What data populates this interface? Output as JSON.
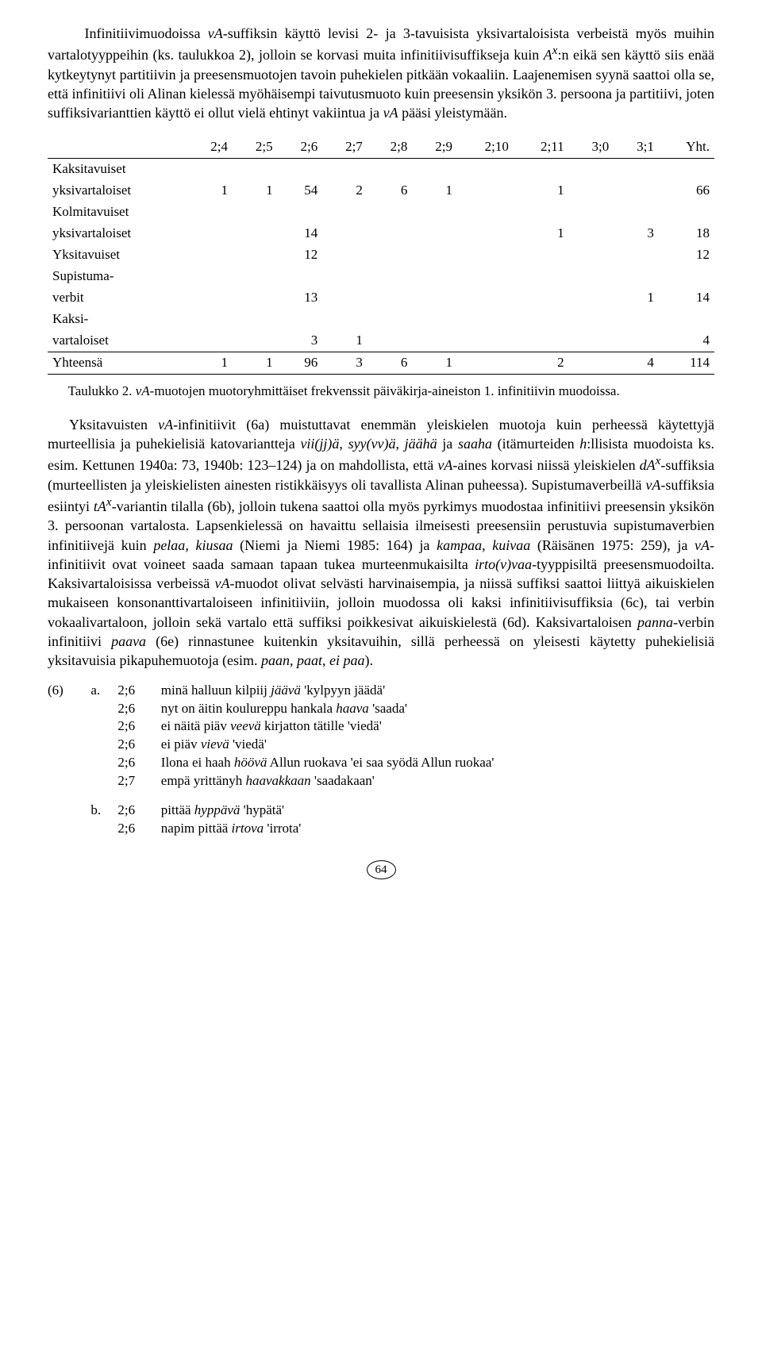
{
  "para1": {
    "a": "Infinitiivimuodoissa ",
    "b": "vA",
    "c": "-suffiksin käyttö levisi 2- ja 3-tavuisista yksivartaloisista verbeistä myös muihin vartalotyyppeihin (ks. taulukkoa 2), jolloin se korvasi muita infinitiivisuffikseja kuin ",
    "d": "A",
    "e": ":n eikä sen käyttö siis enää kytkeytynyt partitiivin ja preesensmuotojen tavoin puhekielen pitkään vokaaliin. Laajenemisen syynä saattoi olla se, että infinitiivi oli Alinan kielessä myöhäisempi taivutusmuoto kuin preesensin yksikön 3. persoona ja partitiivi, joten suffiksivarianttien käyttö ei ollut vielä ehtinyt vakiintua ja ",
    "f": "vA",
    "g": " pääsi yleistymään.",
    "sup": "x"
  },
  "table": {
    "headers": [
      "2;4",
      "2;5",
      "2;6",
      "2;7",
      "2;8",
      "2;9",
      "2;10",
      "2;11",
      "3;0",
      "3;1",
      "Yht."
    ],
    "rows": [
      {
        "label1": "Kaksitavuiset",
        "label2": "yksivartaloiset",
        "cells": [
          "1",
          "1",
          "54",
          "2",
          "6",
          "1",
          "",
          "1",
          "",
          "",
          "66"
        ]
      },
      {
        "label1": "Kolmitavuiset",
        "label2": "yksivartaloiset",
        "cells": [
          "",
          "",
          "14",
          "",
          "",
          "",
          "",
          "1",
          "",
          "3",
          "18"
        ]
      },
      {
        "label1": "Yksitavuiset",
        "label2": "",
        "cells": [
          "",
          "",
          "12",
          "",
          "",
          "",
          "",
          "",
          "",
          "",
          "12"
        ]
      },
      {
        "label1": "Supistuma-",
        "label2": "verbit",
        "cells": [
          "",
          "",
          "13",
          "",
          "",
          "",
          "",
          "",
          "",
          "1",
          "14"
        ]
      },
      {
        "label1": "Kaksi-",
        "label2": "vartaloiset",
        "cells": [
          "",
          "",
          "3",
          "1",
          "",
          "",
          "",
          "",
          "",
          "",
          "4"
        ]
      }
    ],
    "total": {
      "label": "Yhteensä",
      "cells": [
        "1",
        "1",
        "96",
        "3",
        "6",
        "1",
        "",
        "2",
        "",
        "4",
        "114"
      ]
    }
  },
  "caption": {
    "a": "Taulukko 2. ",
    "b": "vA",
    "c": "-muotojen muotoryhmittäiset frekvenssit päiväkirja-aineiston 1. infinitiivin muodoissa."
  },
  "para2_parts": [
    {
      "t": "Yksitavuisten "
    },
    {
      "t": "vA",
      "i": true
    },
    {
      "t": "-infinitiivit (6a) muistuttavat enemmän yleiskielen muotoja kuin perheessä käytettyjä murteellisia ja puhekielisiä katovariantteja "
    },
    {
      "t": "vii(jj)ä",
      "i": true
    },
    {
      "t": ", "
    },
    {
      "t": "syy(vv)ä",
      "i": true
    },
    {
      "t": ", "
    },
    {
      "t": "jäähä",
      "i": true
    },
    {
      "t": " ja "
    },
    {
      "t": "saaha",
      "i": true
    },
    {
      "t": " (itämurteiden "
    },
    {
      "t": "h",
      "i": true
    },
    {
      "t": ":llisista muodoista ks. esim. Kettunen 1940a: 73, 1940b: 123–124) ja on mahdollista, että "
    },
    {
      "t": "vA",
      "i": true
    },
    {
      "t": "-aines korvasi niissä yleiskielen "
    },
    {
      "t": "dA",
      "i": true
    },
    {
      "t": "",
      "sup": "x"
    },
    {
      "t": "-suffiksia (murteellisten ja yleiskielisten ainesten ristikkäisyys oli tavallista Alinan puheessa). Supistumaverbeillä "
    },
    {
      "t": "vA",
      "i": true
    },
    {
      "t": "-suffiksia esiintyi "
    },
    {
      "t": "tA",
      "i": true
    },
    {
      "t": "",
      "sup": "x"
    },
    {
      "t": "-variantin tilalla (6b), jolloin tukena saattoi olla myös pyrkimys muodostaa infinitiivi preesensin yksikön 3. persoonan vartalosta. Lapsenkielessä on havaittu sellaisia ilmeisesti preesensiin perustuvia supistumaverbien infinitiivejä kuin "
    },
    {
      "t": "pelaa",
      "i": true
    },
    {
      "t": ", "
    },
    {
      "t": "kiusaa",
      "i": true
    },
    {
      "t": " (Niemi ja Niemi 1985: 164) ja "
    },
    {
      "t": "kampaa",
      "i": true
    },
    {
      "t": ", "
    },
    {
      "t": "kuivaa",
      "i": true
    },
    {
      "t": " (Räisänen 1975: 259), ja "
    },
    {
      "t": "vA",
      "i": true
    },
    {
      "t": "-infinitiivit ovat voineet saada samaan tapaan tukea murteenmukaisilta "
    },
    {
      "t": "irto(v)vaa",
      "i": true
    },
    {
      "t": "-tyyppisiltä preesensmuodoilta. Kaksivartaloisissa verbeissä "
    },
    {
      "t": "vA",
      "i": true
    },
    {
      "t": "-muodot olivat selvästi harvinaisempia, ja niissä suffiksi saattoi liittyä aikuiskielen mukaiseen konsonanttivartaloiseen infinitiiviin, jolloin muodossa oli kaksi infinitiivisuffiksia (6c), tai verbin vokaalivartaloon, jolloin sekä vartalo että suffiksi poikkesivat aikuiskielestä (6d). Kaksivartaloisen "
    },
    {
      "t": "panna",
      "i": true
    },
    {
      "t": "-verbin infinitiivi "
    },
    {
      "t": "paava",
      "i": true
    },
    {
      "t": " (6e) rinnastunee kuitenkin yksitavuihin, sillä perheessä on yleisesti käytetty puhekielisiä yksitavuisia pikapuhemuotoja (esim. "
    },
    {
      "t": "paan",
      "i": true
    },
    {
      "t": ", "
    },
    {
      "t": "paat",
      "i": true
    },
    {
      "t": ", "
    },
    {
      "t": "ei paa",
      "i": true
    },
    {
      "t": ")."
    }
  ],
  "ex6": {
    "num": "(6)",
    "a": [
      {
        "age": "2;6",
        "pre": "minä halluun kilpiij ",
        "it": "jäävä",
        "post": " 'kylpyyn jäädä'"
      },
      {
        "age": "2;6",
        "pre": "nyt on äitin koulureppu hankala ",
        "it": "haava",
        "post": " 'saada'"
      },
      {
        "age": "2;6",
        "pre": "ei näitä piäv ",
        "it": "veevä",
        "post": " kirjatton tätille 'viedä'"
      },
      {
        "age": "2;6",
        "pre": "ei piäv ",
        "it": "vievä",
        "post": " 'viedä'"
      },
      {
        "age": "2;6",
        "pre": "Ilona ei haah ",
        "it": "höövä",
        "post": " Allun ruokava 'ei saa syödä Allun ruokaa'"
      },
      {
        "age": "2;7",
        "pre": "empä yrittänyh ",
        "it": "haavakkaan",
        "post": " 'saadakaan'"
      }
    ],
    "b": [
      {
        "age": "2;6",
        "pre": "pittää ",
        "it": "hyppävä",
        "post": " 'hypätä'"
      },
      {
        "age": "2;6",
        "pre": "napim pittää ",
        "it": "irtova",
        "post": " 'irrota'"
      }
    ]
  },
  "pagenum": "64"
}
